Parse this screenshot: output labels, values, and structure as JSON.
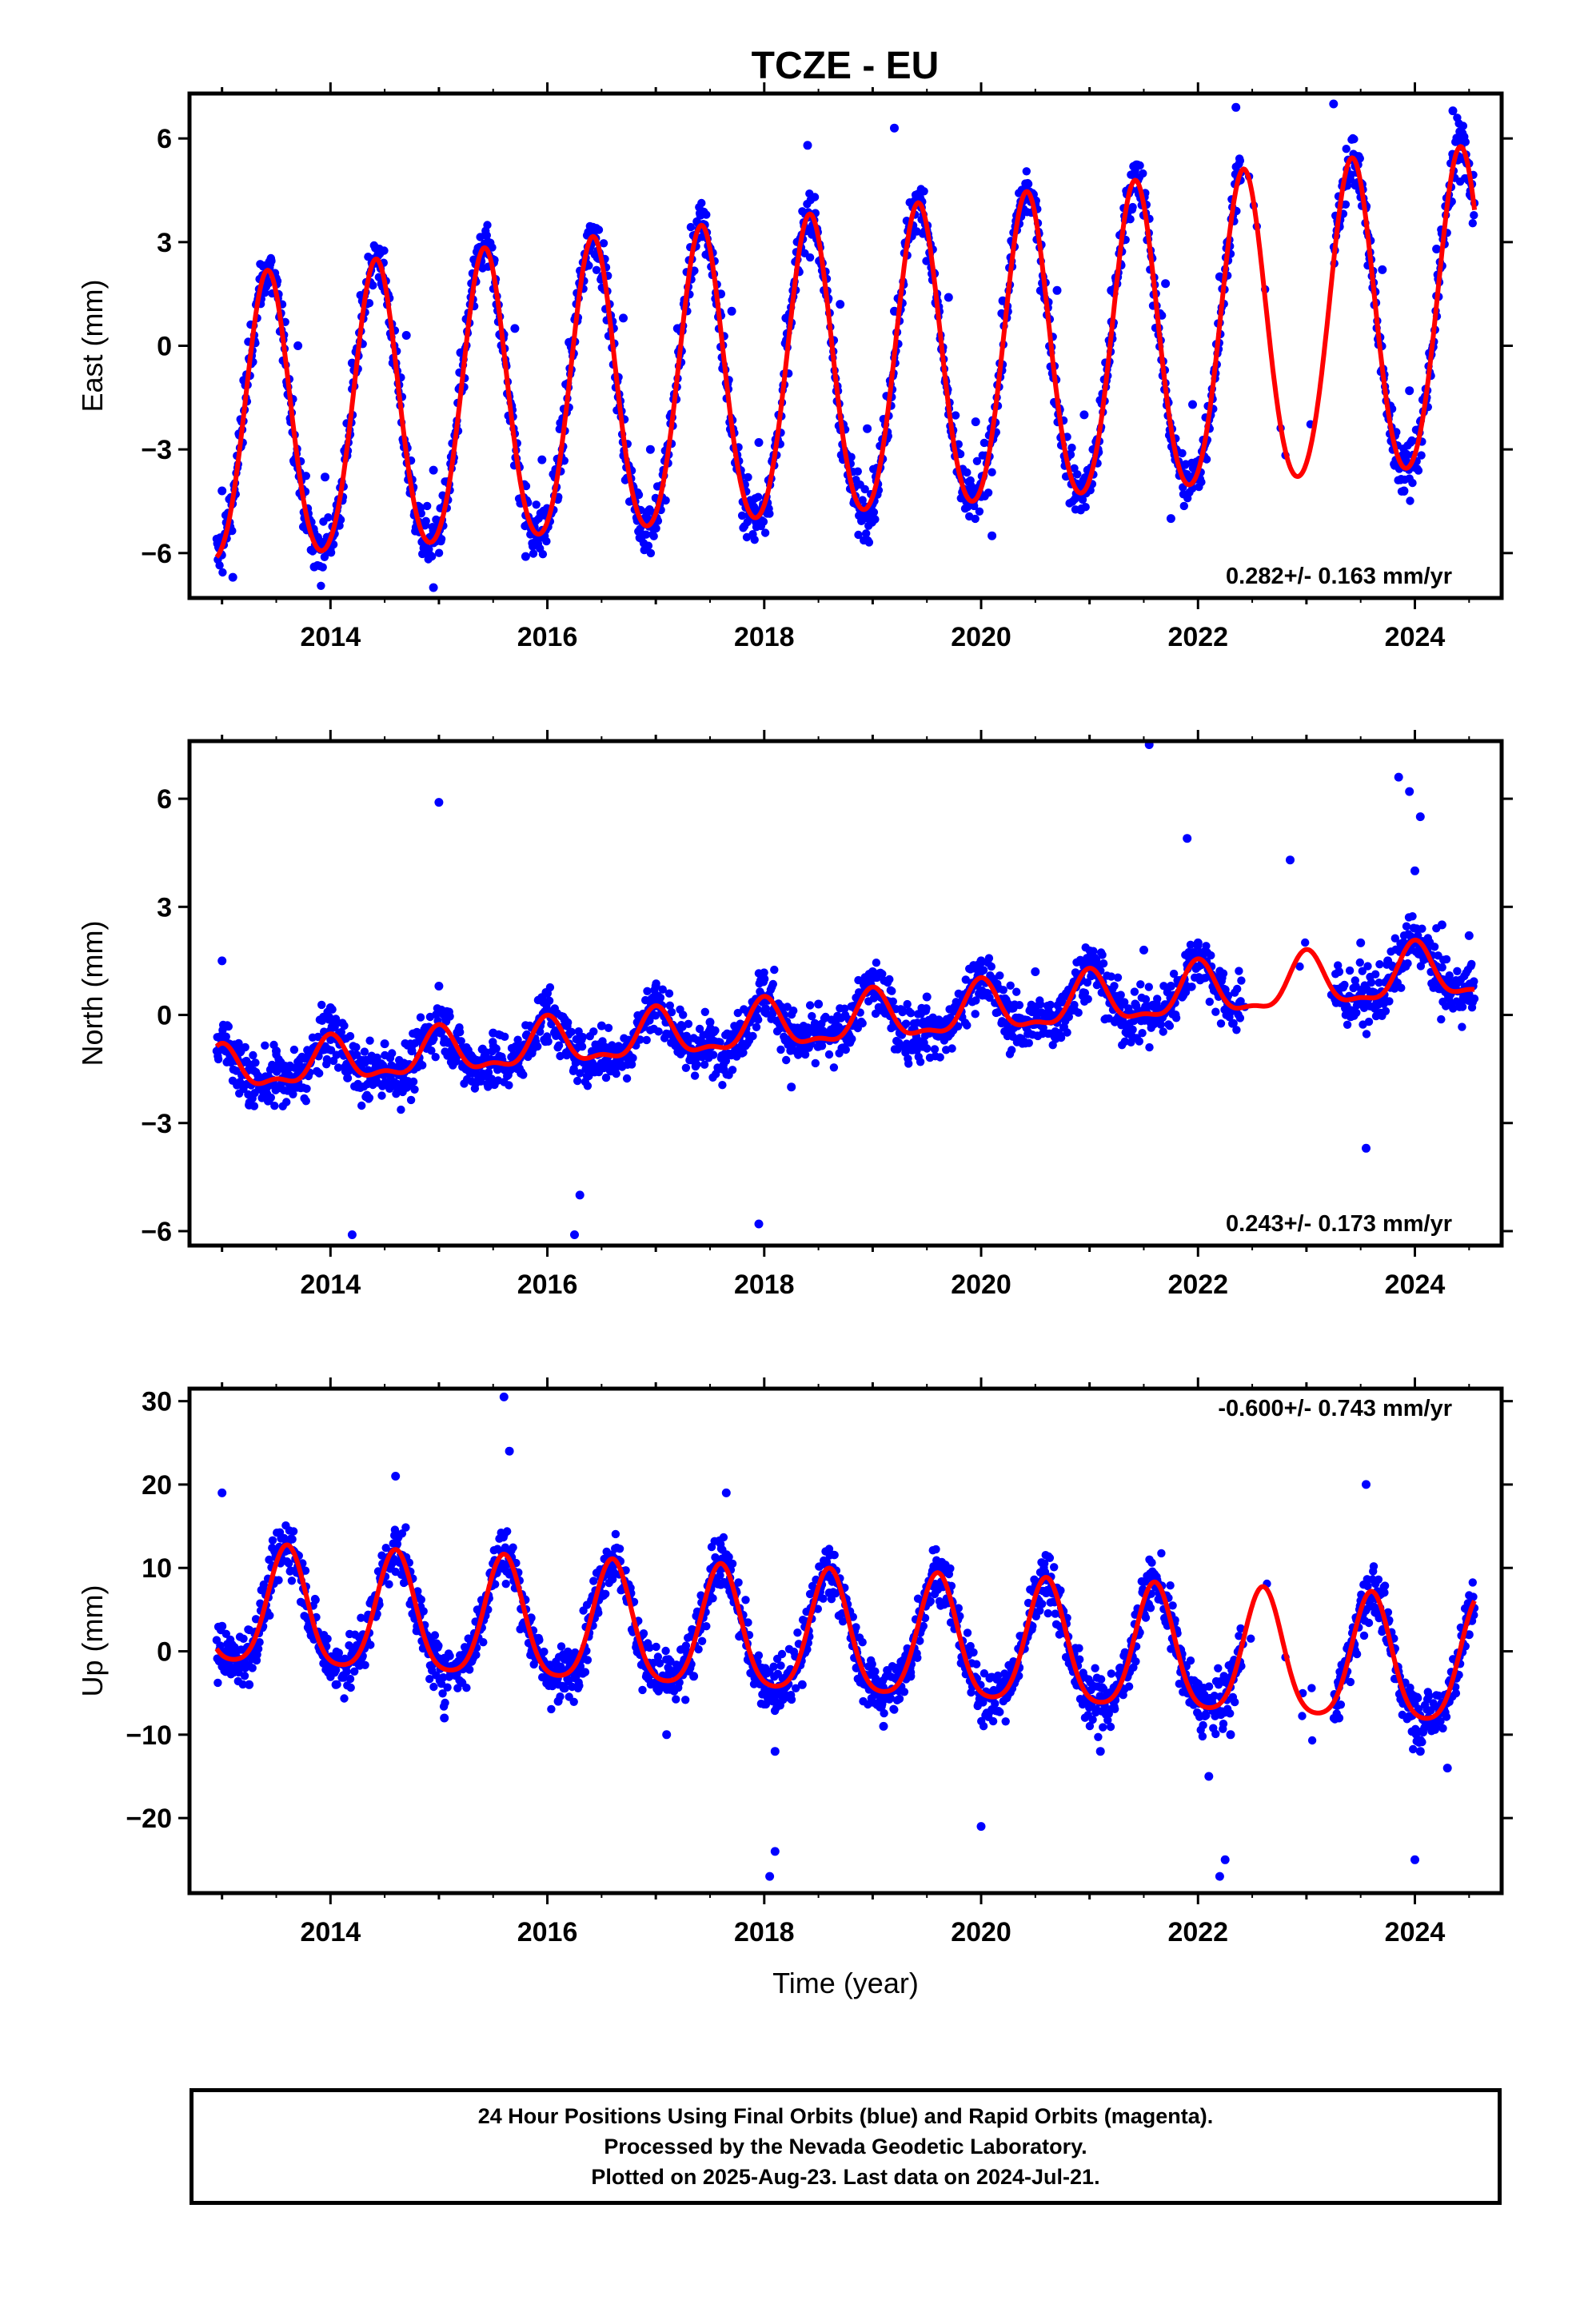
{
  "title": "TCZE - EU",
  "colors": {
    "points": "#0000ff",
    "fit": "#ff0000",
    "frame": "#000000"
  },
  "chart_data": [
    {
      "type": "scatter",
      "panel": "east",
      "ylabel": "East (mm)",
      "xlabel": "",
      "xlim": [
        2012.7,
        2024.8
      ],
      "ylim": [
        -7.3,
        7.3
      ],
      "yticks": [
        -6,
        -3,
        0,
        3,
        6
      ],
      "xticks": [
        2014,
        2016,
        2018,
        2020,
        2022,
        2024
      ],
      "rate_label": "0.282+/- 0.163 mm/yr",
      "rate_position": "bottom-right",
      "model": {
        "offset": -0.9,
        "trend_per_year": 0.282,
        "t0": 2018.5,
        "annual_amplitude": [
          4.1,
          4.6
        ],
        "annual_peak": 0.42,
        "semiannual_amplitude": 0.4
      },
      "series": [
        {
          "label": "Final orbits",
          "x": [
            2013.0,
            2013.2,
            2013.45,
            2013.7,
            2013.95,
            2014.2,
            2014.45,
            2014.7,
            2014.95,
            2015.2,
            2015.45,
            2015.7,
            2015.95,
            2016.2,
            2016.45,
            2016.7,
            2016.95,
            2017.2,
            2017.45,
            2017.7,
            2017.95,
            2018.2,
            2018.45,
            2018.7,
            2018.95,
            2019.2,
            2019.45,
            2019.7,
            2019.95,
            2020.2,
            2020.45,
            2020.7,
            2020.95,
            2021.2,
            2021.45,
            2021.7,
            2021.95,
            2022.2,
            2023.3,
            2023.45,
            2023.7,
            2023.95,
            2024.2,
            2024.45
          ],
          "y": [
            -4.2,
            -1.0,
            2.5,
            0.0,
            -3.8,
            -0.5,
            2.8,
            0.3,
            -3.6,
            -0.2,
            3.0,
            0.5,
            -3.3,
            0.1,
            3.4,
            0.8,
            -3.0,
            0.5,
            3.5,
            1.0,
            -2.8,
            0.8,
            3.8,
            1.2,
            -2.4,
            1.0,
            4.0,
            1.4,
            -2.2,
            1.3,
            4.3,
            1.6,
            -2.0,
            1.6,
            4.5,
            1.8,
            -1.7,
            2.0,
            3.5,
            5.2,
            2.2,
            -1.3,
            2.8,
            5.4
          ]
        },
        {
          "label": "Outliers",
          "x": [
            2013.1,
            2013.85,
            2014.95,
            2015.8,
            2017.6,
            2018.4,
            2019.2,
            2020.1,
            2021.75,
            2022.35,
            2023.25,
            2023.9,
            2024.35
          ],
          "y": [
            -6.7,
            -6.4,
            -7.0,
            -6.1,
            1.5,
            5.8,
            6.3,
            -5.5,
            -5.0,
            6.9,
            7.0,
            -4.2,
            6.8
          ]
        }
      ]
    },
    {
      "type": "scatter",
      "panel": "north",
      "ylabel": "North (mm)",
      "xlabel": "",
      "xlim": [
        2012.7,
        2024.8
      ],
      "ylim": [
        -6.4,
        7.6
      ],
      "yticks": [
        -6,
        -3,
        0,
        3,
        6
      ],
      "xticks": [
        2014,
        2016,
        2018,
        2020,
        2022,
        2024
      ],
      "rate_label": "0.243+/- 0.173 mm/yr",
      "rate_position": "bottom-right",
      "model": {
        "offset": -0.25,
        "trend_per_year": 0.243,
        "t0": 2018.5,
        "annual_amplitude": [
          0.55,
          0.75
        ],
        "annual_peak": 0.0,
        "semiannual_amplitude": 0.25
      },
      "series": [
        {
          "label": "Final orbits",
          "x": [
            2013.0,
            2013.25,
            2013.5,
            2013.75,
            2014.0,
            2014.25,
            2014.5,
            2014.75,
            2015.0,
            2015.25,
            2015.5,
            2015.75,
            2016.0,
            2016.25,
            2016.5,
            2016.75,
            2017.0,
            2017.25,
            2017.5,
            2017.75,
            2018.0,
            2018.25,
            2018.5,
            2018.75,
            2019.0,
            2019.25,
            2019.5,
            2019.75,
            2020.0,
            2020.25,
            2020.5,
            2020.75,
            2021.0,
            2021.25,
            2021.5,
            2021.75,
            2022.0,
            2022.25,
            2023.3,
            2023.5,
            2023.75,
            2024.0,
            2024.25,
            2024.5
          ],
          "y": [
            1.5,
            -2.5,
            -1.0,
            -1.5,
            0.2,
            -2.0,
            -0.8,
            -1.0,
            0.8,
            -1.5,
            -0.5,
            -0.9,
            0.6,
            -1.2,
            -0.3,
            -0.7,
            0.8,
            -1.0,
            -0.2,
            -0.5,
            1.0,
            -2.0,
            0.3,
            -0.4,
            1.2,
            -0.5,
            0.5,
            0.1,
            1.5,
            0.3,
            1.2,
            0.5,
            1.6,
            0.5,
            1.8,
            0.8,
            2.0,
            0.7,
            1.2,
            2.0,
            1.5,
            4.0,
            2.5,
            2.2
          ]
        },
        {
          "label": "Outliers",
          "x": [
            2015.0,
            2016.25,
            2017.95,
            2021.55,
            2021.9,
            2022.85,
            2023.85,
            2023.95,
            2024.05,
            2014.2,
            2016.3,
            2023.55
          ],
          "y": [
            5.9,
            -6.1,
            -5.8,
            7.5,
            4.9,
            4.3,
            6.6,
            6.2,
            5.5,
            -6.1,
            -5.0,
            -3.7
          ]
        }
      ]
    },
    {
      "type": "scatter",
      "panel": "up",
      "ylabel": "Up (mm)",
      "xlabel": "Time (year)",
      "xlim": [
        2012.7,
        2024.8
      ],
      "ylim": [
        -29,
        31.5
      ],
      "yticks": [
        -20,
        -10,
        0,
        10,
        20,
        30
      ],
      "xticks": [
        2014,
        2016,
        2018,
        2020,
        2022,
        2024
      ],
      "rate_label": "-0.600+/- 0.743 mm/yr",
      "rate_position": "top-right",
      "model": {
        "offset": 1.5,
        "trend_per_year": -0.6,
        "t0": 2018.5,
        "annual_amplitude": [
          7.0,
          7.5
        ],
        "annual_peak": 0.6,
        "semiannual_amplitude": 1.3
      },
      "series": [
        {
          "label": "Final orbits",
          "x": [
            2013.0,
            2013.25,
            2013.55,
            2013.8,
            2014.05,
            2014.3,
            2014.55,
            2014.8,
            2015.05,
            2015.3,
            2015.6,
            2015.85,
            2016.1,
            2016.35,
            2016.6,
            2016.85,
            2017.1,
            2017.35,
            2017.6,
            2017.85,
            2018.1,
            2018.35,
            2018.6,
            2018.85,
            2019.1,
            2019.35,
            2019.6,
            2019.85,
            2020.1,
            2020.35,
            2020.6,
            2020.85,
            2021.1,
            2021.35,
            2021.6,
            2021.85,
            2022.1,
            2022.3,
            2023.3,
            2023.55,
            2023.8,
            2024.05,
            2024.3,
            2024.5
          ],
          "y": [
            3.0,
            -4.0,
            11.0,
            4.0,
            -4.0,
            2.0,
            10.0,
            3.0,
            -8.0,
            1.0,
            14.0,
            4.0,
            -6.0,
            0.0,
            9.0,
            1.0,
            -10.0,
            -3.0,
            8.0,
            -1.0,
            -12.0,
            -4.0,
            7.0,
            -2.0,
            -9.0,
            -3.0,
            8.0,
            0.0,
            -7.0,
            -2.0,
            7.0,
            -1.0,
            -12.0,
            -3.0,
            8.0,
            -2.0,
            -15.0,
            -10.0,
            -8.0,
            5.0,
            0.0,
            -12.0,
            -14.0,
            2.0
          ]
        },
        {
          "label": "Outliers",
          "x": [
            2015.6,
            2015.65,
            2013.0,
            2014.6,
            2017.65,
            2018.05,
            2018.1,
            2022.2,
            2022.25,
            2023.55,
            2024.0,
            2020.0
          ],
          "y": [
            30.5,
            24.0,
            19.0,
            21.0,
            19.0,
            -27.0,
            -24.0,
            -27.0,
            -25.0,
            20.0,
            -25.0,
            -21.0
          ]
        }
      ]
    }
  ],
  "footer": {
    "line1": "24 Hour Positions Using Final Orbits (blue) and Rapid Orbits (magenta).",
    "line2": "Processed by the Nevada Geodetic Laboratory.",
    "line3": "Plotted on 2025-Aug-23. Last data on 2024-Jul-21."
  }
}
